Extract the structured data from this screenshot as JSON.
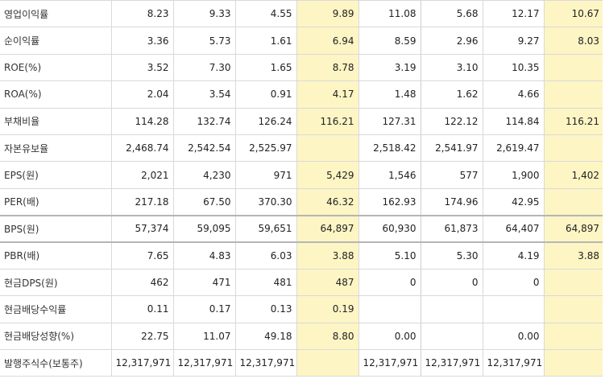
{
  "table": {
    "rows": [
      {
        "label": "영업이익률",
        "cells": [
          "8.23",
          "9.33",
          "4.55",
          "9.89",
          "11.08",
          "5.68",
          "12.17",
          "10.67"
        ]
      },
      {
        "label": "순이익률",
        "cells": [
          "3.36",
          "5.73",
          "1.61",
          "6.94",
          "8.59",
          "2.96",
          "9.27",
          "8.03"
        ]
      },
      {
        "label": "ROE(%)",
        "cells": [
          "3.52",
          "7.30",
          "1.65",
          "8.78",
          "3.19",
          "3.10",
          "10.35",
          ""
        ]
      },
      {
        "label": "ROA(%)",
        "cells": [
          "2.04",
          "3.54",
          "0.91",
          "4.17",
          "1.48",
          "1.62",
          "4.66",
          ""
        ]
      },
      {
        "label": "부채비율",
        "cells": [
          "114.28",
          "132.74",
          "126.24",
          "116.21",
          "127.31",
          "122.12",
          "114.84",
          "116.21"
        ]
      },
      {
        "label": "자본유보율",
        "cells": [
          "2,468.74",
          "2,542.54",
          "2,525.97",
          "",
          "2,518.42",
          "2,541.97",
          "2,619.47",
          ""
        ]
      },
      {
        "label": "EPS(원)",
        "cells": [
          "2,021",
          "4,230",
          "971",
          "5,429",
          "1,546",
          "577",
          "1,900",
          "1,402"
        ]
      },
      {
        "label": "PER(배)",
        "cells": [
          "217.18",
          "67.50",
          "370.30",
          "46.32",
          "162.93",
          "174.96",
          "42.95",
          ""
        ]
      },
      {
        "label": "BPS(원)",
        "cells": [
          "57,374",
          "59,095",
          "59,651",
          "64,897",
          "60,930",
          "61,873",
          "64,407",
          "64,897"
        ]
      },
      {
        "label": "PBR(배)",
        "cells": [
          "7.65",
          "4.83",
          "6.03",
          "3.88",
          "5.10",
          "5.30",
          "4.19",
          "3.88"
        ]
      },
      {
        "label": "현금DPS(원)",
        "cells": [
          "462",
          "471",
          "481",
          "487",
          "0",
          "0",
          "0",
          ""
        ]
      },
      {
        "label": "현금배당수익률",
        "cells": [
          "0.11",
          "0.17",
          "0.13",
          "0.19",
          "",
          "",
          "",
          ""
        ]
      },
      {
        "label": "현금배당성향(%)",
        "cells": [
          "22.75",
          "11.07",
          "49.18",
          "8.80",
          "0.00",
          "",
          "0.00",
          ""
        ]
      },
      {
        "label": "발행주식수(보통주)",
        "cells": [
          "12,317,971",
          "12,317,971",
          "12,317,971",
          "",
          "12,317,971",
          "12,317,971",
          "12,317,971",
          ""
        ]
      }
    ]
  },
  "colors": {
    "highlight": "#fdf5c4",
    "border": "#d9d9d9",
    "text": "#222222"
  }
}
